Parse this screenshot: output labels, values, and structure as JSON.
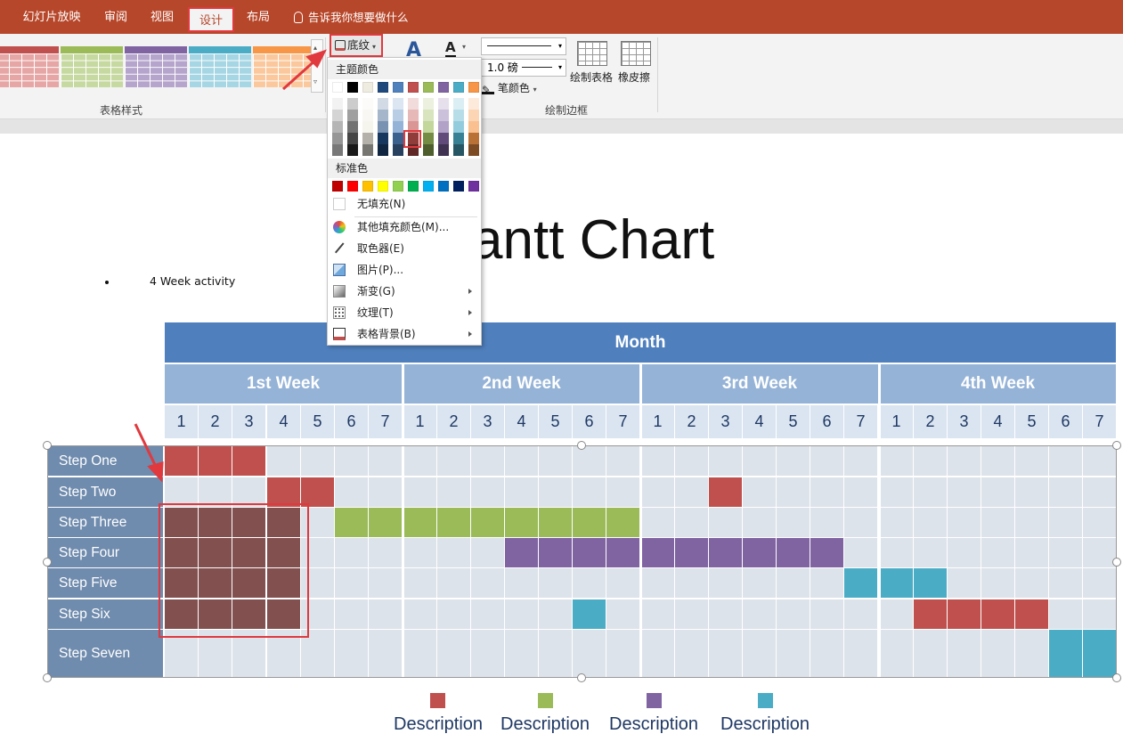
{
  "tabs": [
    {
      "label": "幻灯片放映",
      "x": 16,
      "w": 84
    },
    {
      "label": "审阅",
      "x": 110,
      "w": 40
    },
    {
      "label": "视图",
      "x": 162,
      "w": 40
    },
    {
      "label": "设计",
      "x": 211,
      "w": 52,
      "active": true
    },
    {
      "label": "布局",
      "x": 270,
      "w": 40
    }
  ],
  "tellme": "告诉我你想要做什么",
  "ribbon": {
    "table_styles_label": "表格样式",
    "draw_borders_label": "绘制边框",
    "shading_label": "底纹",
    "line_weight": "1.0 磅",
    "pen_color": "笔颜色",
    "draw_table": "绘制表格",
    "eraser": "橡皮擦"
  },
  "dropdown": {
    "theme_colors_label": "主题颜色",
    "standard_colors_label": "标准色",
    "theme_colors": [
      "#ffffff",
      "#000000",
      "#eeece1",
      "#1f497d",
      "#4f81bd",
      "#c0504d",
      "#9bbb59",
      "#8064a2",
      "#4bacc6",
      "#f79646"
    ],
    "standard_colors": [
      "#c00000",
      "#ff0000",
      "#ffc000",
      "#ffff00",
      "#92d050",
      "#00b050",
      "#00b0f0",
      "#0070c0",
      "#002060",
      "#7030a0"
    ],
    "items": [
      "无填充(N)",
      "其他填充颜色(M)...",
      "取色器(E)",
      "图片(P)...",
      "渐变(G)",
      "纹理(T)",
      "表格背景(B)"
    ]
  },
  "slide": {
    "title": "antt Chart",
    "bullet": "4 Week activity"
  },
  "gantt": {
    "month_label": "Month",
    "weeks": [
      "1st Week",
      "2nd Week",
      "3rd Week",
      "4th Week"
    ],
    "days": [
      "1",
      "2",
      "3",
      "4",
      "5",
      "6",
      "7",
      "1",
      "2",
      "3",
      "4",
      "5",
      "6",
      "7",
      "1",
      "2",
      "3",
      "4",
      "5",
      "6",
      "7",
      "1",
      "2",
      "3",
      "4",
      "5",
      "6",
      "7"
    ],
    "rows": [
      {
        "label": "Step One",
        "cells": [
          1,
          1,
          1,
          0,
          0,
          0,
          0,
          0,
          0,
          0,
          0,
          0,
          0,
          0,
          0,
          0,
          0,
          0,
          0,
          0,
          0,
          0,
          0,
          0,
          0,
          0,
          0,
          0
        ]
      },
      {
        "label": "Step Two",
        "cells": [
          0,
          0,
          0,
          1,
          1,
          0,
          0,
          0,
          0,
          0,
          0,
          0,
          0,
          0,
          0,
          0,
          1,
          0,
          0,
          0,
          0,
          0,
          0,
          0,
          0,
          0,
          0,
          0
        ]
      },
      {
        "label": "Step Three",
        "cells": [
          5,
          5,
          5,
          5,
          0,
          2,
          2,
          2,
          2,
          2,
          2,
          2,
          2,
          2,
          0,
          0,
          0,
          0,
          0,
          0,
          0,
          0,
          0,
          0,
          0,
          0,
          0,
          0
        ]
      },
      {
        "label": "Step Four",
        "cells": [
          5,
          5,
          5,
          5,
          0,
          0,
          0,
          0,
          0,
          0,
          3,
          3,
          3,
          3,
          3,
          3,
          3,
          3,
          3,
          3,
          0,
          0,
          0,
          0,
          0,
          0,
          0,
          0
        ]
      },
      {
        "label": "Step Five",
        "cells": [
          5,
          5,
          5,
          5,
          0,
          0,
          0,
          0,
          0,
          0,
          0,
          0,
          0,
          0,
          0,
          0,
          0,
          0,
          0,
          0,
          4,
          4,
          4,
          0,
          0,
          0,
          0,
          0
        ]
      },
      {
        "label": "Step Six",
        "cells": [
          5,
          5,
          5,
          5,
          0,
          0,
          0,
          0,
          0,
          0,
          0,
          0,
          4,
          0,
          0,
          0,
          0,
          0,
          0,
          0,
          0,
          0,
          1,
          1,
          1,
          1,
          0,
          0
        ]
      },
      {
        "label": "Step Seven",
        "cells": [
          0,
          0,
          0,
          0,
          0,
          0,
          0,
          0,
          0,
          0,
          0,
          0,
          0,
          0,
          0,
          0,
          0,
          0,
          0,
          0,
          0,
          0,
          0,
          0,
          0,
          0,
          4,
          4
        ]
      }
    ],
    "legend": [
      {
        "color": "#c0504d",
        "label": "Description"
      },
      {
        "color": "#9bbb59",
        "label": "Description"
      },
      {
        "color": "#8064a2",
        "label": "Description"
      },
      {
        "color": "#4bacc6",
        "label": "Description"
      }
    ]
  }
}
